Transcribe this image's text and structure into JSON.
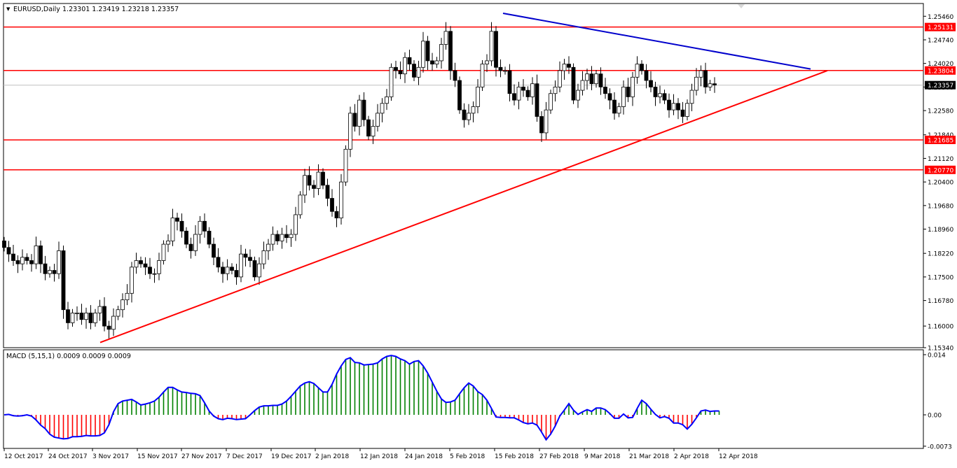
{
  "window": {
    "symbol_header": "EURUSD,Daily",
    "ohlc_header": "1.23301 1.23419 1.23218 1.23357",
    "menu_marker": "▼"
  },
  "colors": {
    "background": "#ffffff",
    "frame": "#000000",
    "bull_candle": "#ffffff",
    "bear_candle": "#000000",
    "hline": "#ff0000",
    "support_trendline": "#ff0000",
    "resistance_trendline": "#0000cc",
    "macd_line": "#0000ff",
    "hist_positive": "#008000",
    "hist_negative": "#ff0000",
    "last_price_line": "#c0c0c0",
    "price_label_bg": "#000000"
  },
  "main": {
    "y_ticks": [
      "1.25460",
      "1.24740",
      "1.24020",
      "1.23300",
      "1.22580",
      "1.21840",
      "1.21120",
      "1.20400",
      "1.19680",
      "1.18960",
      "1.18220",
      "1.17500",
      "1.16780",
      "1.16000",
      "1.15340"
    ],
    "hlines": [
      {
        "label": "1.25131",
        "value": 1.25131
      },
      {
        "label": "1.23804",
        "value": 1.23804
      },
      {
        "label": "1.21685",
        "value": 1.21685
      },
      {
        "label": "1.20770",
        "value": 1.2077
      }
    ],
    "last_price": {
      "label": "1.23357",
      "value": 1.23357
    }
  },
  "macd": {
    "header": "MACD (5,15,1) 0.0009 0.0009 0.0009",
    "y_ticks": [
      "0.014",
      "0.00",
      "-0.0073"
    ]
  },
  "x_ticks": [
    "12 Oct 2017",
    "24 Oct 2017",
    "3 Nov 2017",
    "15 Nov 2017",
    "27 Nov 2017",
    "7 Dec 2017",
    "19 Dec 2017",
    "2 Jan 2018",
    "12 Jan 2018",
    "24 Jan 2018",
    "5 Feb 2018",
    "15 Feb 2018",
    "27 Feb 2018",
    "9 Mar 2018",
    "21 Mar 2018",
    "2 Apr 2018",
    "12 Apr 2018"
  ],
  "chart_data": {
    "type": "candlestick",
    "symbol": "EURUSD",
    "timeframe": "Daily",
    "ylim": [
      1.1534,
      1.2585
    ],
    "x_range": [
      "12 Oct 2017",
      "13 Apr 2018"
    ],
    "grid": false,
    "series": [
      {
        "name": "EURUSD,Daily",
        "approx_closes": [
          1.184,
          1.182,
          1.18,
          1.179,
          1.181,
          1.18,
          1.179,
          1.1845,
          1.179,
          1.176,
          1.177,
          1.176,
          1.183,
          1.165,
          1.161,
          1.164,
          1.164,
          1.162,
          1.164,
          1.161,
          1.164,
          1.166,
          1.16,
          1.159,
          1.163,
          1.165,
          1.168,
          1.17,
          1.178,
          1.18,
          1.179,
          1.178,
          1.176,
          1.176,
          1.18,
          1.185,
          1.186,
          1.193,
          1.192,
          1.189,
          1.185,
          1.183,
          1.188,
          1.192,
          1.189,
          1.185,
          1.181,
          1.178,
          1.176,
          1.178,
          1.177,
          1.175,
          1.182,
          1.181,
          1.18,
          1.175,
          1.179,
          1.183,
          1.185,
          1.188,
          1.186,
          1.188,
          1.187,
          1.188,
          1.194,
          1.2,
          1.206,
          1.203,
          1.202,
          1.207,
          1.203,
          1.199,
          1.195,
          1.193,
          1.204,
          1.214,
          1.225,
          1.221,
          1.229,
          1.223,
          1.218,
          1.221,
          1.225,
          1.228,
          1.23,
          1.239,
          1.238,
          1.237,
          1.242,
          1.24,
          1.236,
          1.239,
          1.247,
          1.241,
          1.24,
          1.241,
          1.246,
          1.25,
          1.238,
          1.235,
          1.226,
          1.223,
          1.225,
          1.227,
          1.233,
          1.24,
          1.241,
          1.25,
          1.239,
          1.238,
          1.238,
          1.231,
          1.229,
          1.233,
          1.232,
          1.23,
          1.234,
          1.224,
          1.219,
          1.226,
          1.231,
          1.233,
          1.238,
          1.24,
          1.239,
          1.229,
          1.232,
          1.235,
          1.237,
          1.234,
          1.237,
          1.233,
          1.231,
          1.229,
          1.225,
          1.227,
          1.233,
          1.23,
          1.236,
          1.24,
          1.238,
          1.235,
          1.233,
          1.23,
          1.231,
          1.229,
          1.226,
          1.228,
          1.226,
          1.224,
          1.228,
          1.232,
          1.236,
          1.238,
          1.233,
          1.234,
          1.2336
        ]
      }
    ],
    "horizontal_levels": [
      1.25131,
      1.23804,
      1.21685,
      1.2077
    ],
    "trendlines": [
      {
        "name": "support",
        "color": "red",
        "from": [
          "3 Nov 2017",
          1.155
        ],
        "to": [
          "20 Apr 2018",
          1.238
        ]
      },
      {
        "name": "resistance",
        "color": "blue",
        "from": [
          "15 Feb 2018",
          1.2555
        ],
        "to": [
          "19 Apr 2018",
          1.2385
        ]
      }
    ],
    "macd": {
      "params": "5,15,1",
      "ylim": [
        -0.0073,
        0.014
      ],
      "values": [
        0.0,
        0.0001,
        -0.0002,
        -0.0003,
        -0.0002,
        0.0,
        -0.0003,
        -0.0012,
        -0.0024,
        -0.0032,
        -0.0045,
        -0.0052,
        -0.0054,
        -0.0056,
        -0.0055,
        -0.0051,
        -0.0051,
        -0.005,
        -0.0048,
        -0.0049,
        -0.0049,
        -0.0048,
        -0.0042,
        -0.0023,
        0.0007,
        0.0026,
        0.0032,
        0.0034,
        0.0036,
        0.003,
        0.0023,
        0.0025,
        0.0028,
        0.0032,
        0.0041,
        0.0053,
        0.0064,
        0.0064,
        0.0058,
        0.0053,
        0.0052,
        0.005,
        0.0049,
        0.0045,
        0.0028,
        0.0009,
        -0.0003,
        -0.0009,
        -0.0011,
        -0.0008,
        -0.0009,
        -0.0011,
        -0.001,
        -0.0009,
        0.0,
        0.001,
        0.0018,
        0.0021,
        0.0021,
        0.0022,
        0.0022,
        0.0025,
        0.0032,
        0.0043,
        0.0055,
        0.0067,
        0.0074,
        0.0077,
        0.0073,
        0.0063,
        0.0053,
        0.0053,
        0.0071,
        0.0095,
        0.0114,
        0.0129,
        0.0133,
        0.0122,
        0.0121,
        0.0116,
        0.0117,
        0.0118,
        0.0121,
        0.013,
        0.0136,
        0.0138,
        0.0136,
        0.013,
        0.0126,
        0.0118,
        0.0124,
        0.0126,
        0.0114,
        0.0097,
        0.0076,
        0.0055,
        0.0037,
        0.0029,
        0.003,
        0.0034,
        0.0049,
        0.0063,
        0.0074,
        0.0067,
        0.0054,
        0.0047,
        0.0034,
        0.0015,
        -0.0005,
        -0.0006,
        -0.0006,
        -0.0007,
        -0.0007,
        -0.0012,
        -0.0018,
        -0.0021,
        -0.0019,
        -0.0024,
        -0.004,
        -0.0058,
        -0.0045,
        -0.0026,
        -0.0003,
        0.0011,
        0.0026,
        0.0011,
        0.0001,
        0.0007,
        0.0012,
        0.0008,
        0.0016,
        0.0016,
        0.0012,
        0.0003,
        -0.0008,
        -0.0008,
        0.0002,
        -0.0007,
        -0.0006,
        0.0015,
        0.0034,
        0.0026,
        0.0013,
        0.0001,
        -0.0007,
        -0.0004,
        -0.0008,
        -0.0019,
        -0.0019,
        -0.0023,
        -0.0033,
        -0.0022,
        -0.0007,
        0.0009,
        0.0011,
        0.0008,
        0.0009,
        0.0009
      ]
    }
  }
}
